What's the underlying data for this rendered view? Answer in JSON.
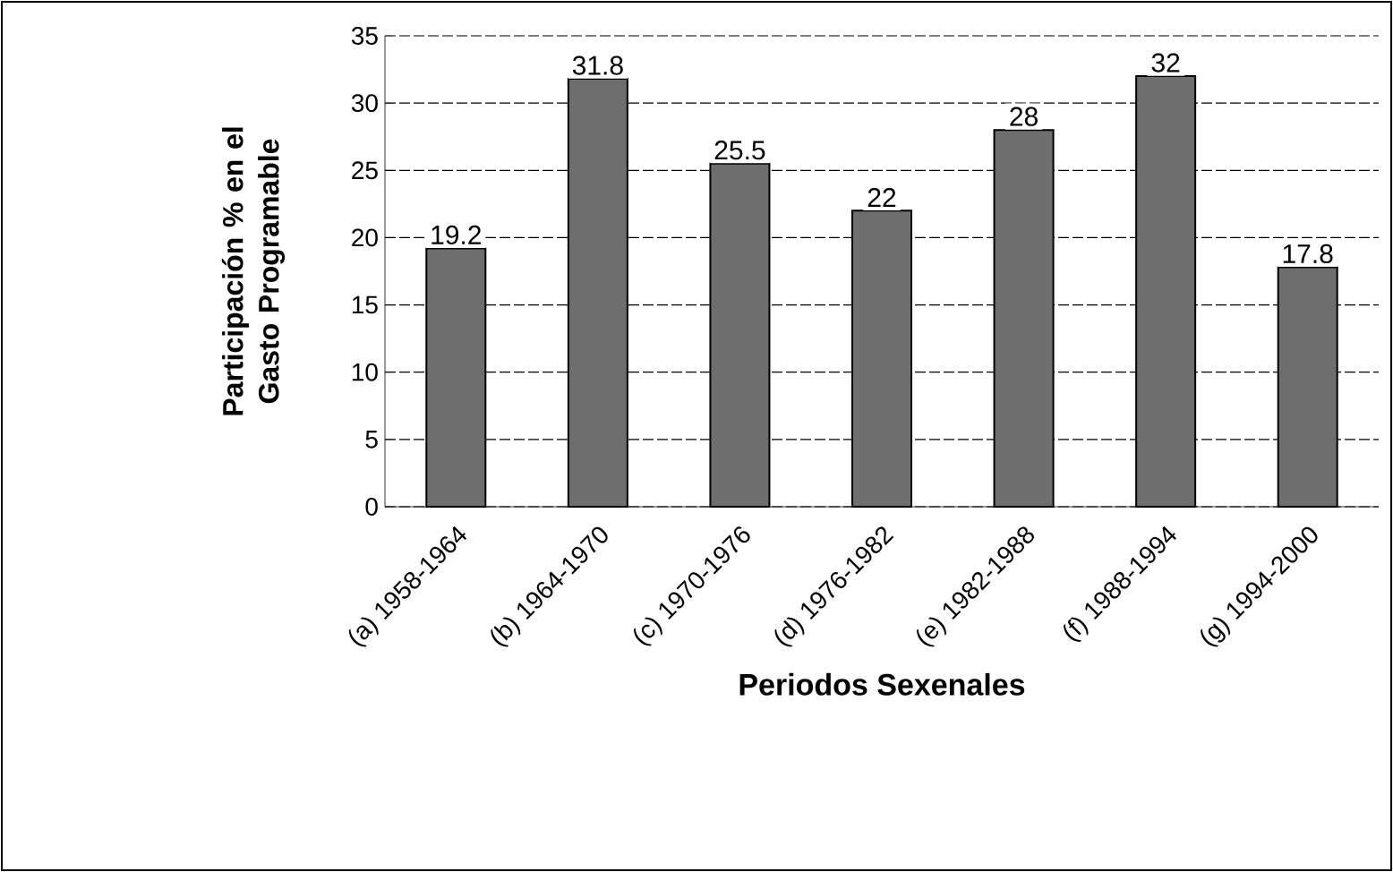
{
  "chart_data": {
    "type": "bar",
    "xlabel": "Periodos Sexenales",
    "ylabel": "Participación % en el Gasto Programable",
    "categories": [
      "(a) 1958-1964",
      "(b) 1964-1970",
      "(c) 1970-1976",
      "(d) 1976-1982",
      "(e) 1982-1988",
      "(f) 1988-1994",
      "(g) 1994-2000"
    ],
    "values": [
      19.2,
      31.8,
      25.5,
      22,
      28,
      32,
      17.8
    ],
    "color": "#6e6e6e",
    "ylim": [
      0,
      35
    ],
    "yticks": [
      0,
      5,
      10,
      15,
      20,
      25,
      30,
      35
    ],
    "grid": "y",
    "data_labels": true
  }
}
